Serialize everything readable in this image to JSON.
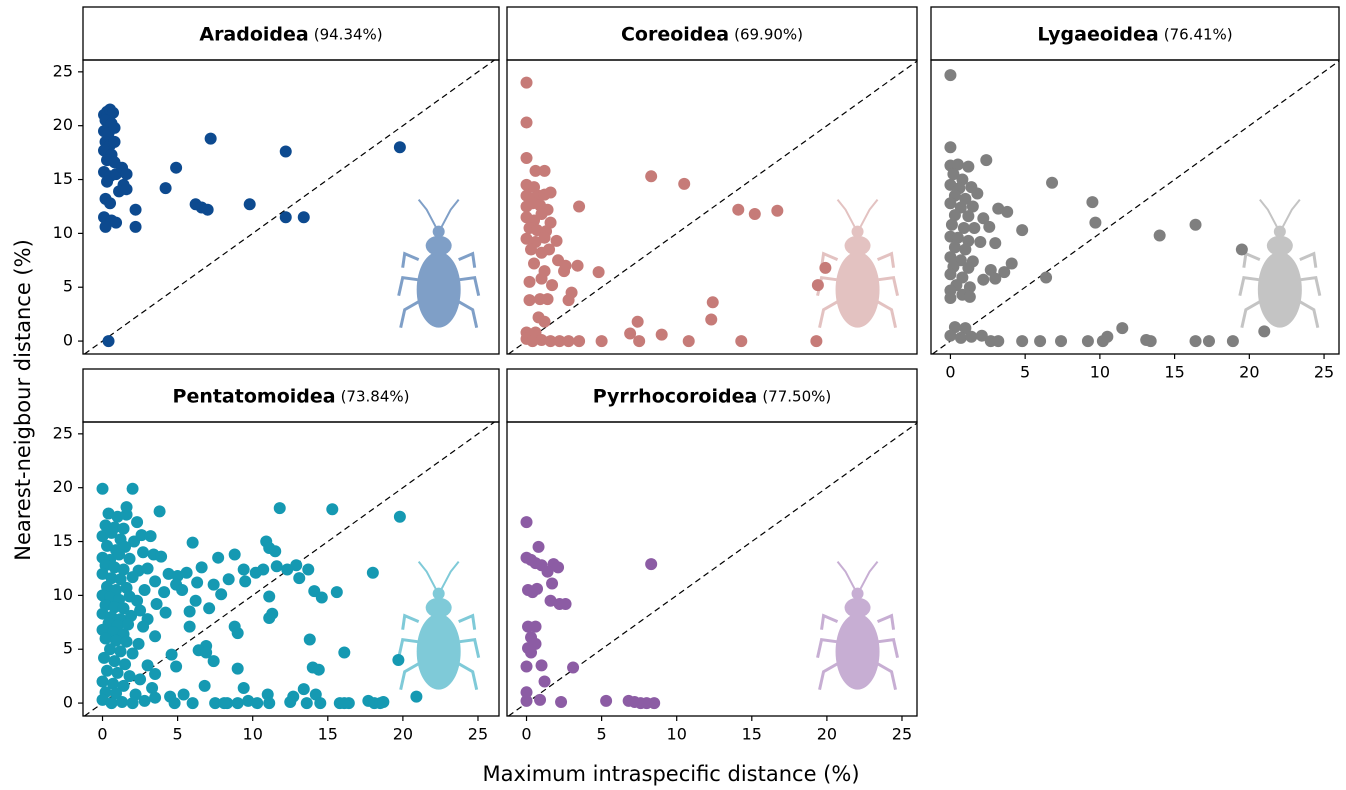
{
  "ylabel": "Nearest-neigbour distance (%)",
  "xlabel": "Maximum intraspecific distance (%)",
  "chart_data": [
    {
      "type": "scatter",
      "title": "Aradoidea",
      "subtitle": "(94.34%)",
      "color": "#0d4a8f",
      "icon_color": "#7f9fc7",
      "identity_line": true,
      "xlim": [
        -1.3,
        26.4
      ],
      "ylim": [
        -1.2,
        26.1
      ],
      "yticks": [
        0,
        5,
        10,
        15,
        20,
        25
      ],
      "x": [
        0.4,
        0.1,
        0.3,
        0.5,
        0.7,
        0.2,
        0.6,
        0.1,
        0.4,
        0.8,
        0.2,
        0.5,
        0.8,
        0.1,
        0.6,
        0.3,
        0.8,
        0.1,
        0.5,
        0.9,
        0.3,
        1.3,
        1.6,
        1.4,
        1.1,
        1.6,
        0.2,
        0.5,
        2.2,
        0.1,
        0.6,
        0.9,
        0.2,
        2.2,
        4.2,
        4.9,
        6.2,
        6.6,
        7,
        7.2,
        9.8,
        12.2,
        12.2,
        13.4,
        19.8
      ],
      "values": [
        0,
        21,
        21.3,
        21.5,
        21.2,
        20.5,
        20.2,
        19.5,
        19.3,
        19.8,
        18.5,
        18.2,
        18.5,
        17.7,
        17.3,
        16.8,
        16.6,
        15.7,
        15.3,
        15.5,
        14.8,
        16.1,
        15.5,
        14.5,
        13.9,
        14.1,
        13.2,
        12.8,
        12.2,
        11.5,
        11.2,
        11,
        10.6,
        10.6,
        14.2,
        16.1,
        12.7,
        12.4,
        12.2,
        18.8,
        12.7,
        17.6,
        11.5,
        11.5,
        18
      ]
    },
    {
      "type": "scatter",
      "title": "Coreoidea",
      "subtitle": "(69.90%)",
      "color": "#c67b78",
      "icon_color": "#e3c2c1",
      "identity_line": true,
      "xlim": [
        -1.3,
        26.0
      ],
      "ylim": [
        -1.2,
        26.1
      ],
      "x": [
        0,
        0,
        0,
        0.6,
        1.2,
        0,
        0.5,
        0,
        0.4,
        0.8,
        1.2,
        1.6,
        0,
        0.4,
        0.9,
        1.4,
        3.5,
        0,
        0.5,
        1,
        1.6,
        0.2,
        0.7,
        1.3,
        0,
        0.6,
        1.2,
        2,
        0.3,
        1,
        1.5,
        2.1,
        2.6,
        3.4,
        0.5,
        1.2,
        2.5,
        4.8,
        0.2,
        1,
        1.7,
        3,
        0.2,
        0.9,
        1.4,
        2.8,
        0.8,
        1.2,
        0,
        0.6,
        7.4,
        0,
        0.4,
        1,
        1.6,
        2.2,
        2.8,
        3.5,
        5,
        7.5,
        8.3,
        10.5,
        9,
        6.9,
        10.8,
        12.4,
        12.3,
        14.1,
        15.2,
        16.7,
        14.3,
        19.3,
        19.4,
        19.9
      ],
      "values": [
        24,
        20.3,
        17,
        15.8,
        15.8,
        14.5,
        14.3,
        13.5,
        13.2,
        13.5,
        13.6,
        13.8,
        12.5,
        12.8,
        12.6,
        12.2,
        12.5,
        11.5,
        11.2,
        11.8,
        11,
        10.5,
        10.3,
        10.2,
        9.5,
        9.2,
        9.6,
        9.3,
        8.5,
        8.2,
        8.5,
        7.5,
        7,
        7,
        7.2,
        6.5,
        6.5,
        6.4,
        5.5,
        5.8,
        5.2,
        4.5,
        3.8,
        3.9,
        3.9,
        3.8,
        2.2,
        1.8,
        0.8,
        0.8,
        1.8,
        0.2,
        0,
        0.1,
        0,
        0,
        0,
        0,
        0,
        0,
        15.3,
        14.6,
        0.6,
        0.7,
        0,
        3.6,
        2,
        12.2,
        11.8,
        12.1,
        0,
        0,
        5.2,
        6.8
      ]
    },
    {
      "type": "scatter",
      "title": "Lygaeoidea",
      "subtitle": "(76.41%)",
      "color": "#7f7f7f",
      "icon_color": "#c4c4c4",
      "identity_line": true,
      "xlim": [
        -1.3,
        26.0
      ],
      "ylim": [
        -1.2,
        26.1
      ],
      "xticks": [
        0,
        5,
        10,
        15,
        20,
        25
      ],
      "x": [
        0,
        0,
        0,
        0.5,
        1.2,
        2.4,
        0.2,
        0.8,
        0,
        0.6,
        1.4,
        6.8,
        0.3,
        1,
        1.8,
        0,
        0.7,
        1.5,
        3.2,
        3.8,
        9.5,
        0.3,
        1.2,
        2.2,
        9.7,
        16.4,
        0.1,
        0.9,
        1.6,
        2.6,
        4.8,
        14,
        0,
        0.5,
        1.2,
        2,
        3,
        0.3,
        1,
        19.5,
        0,
        0.7,
        1.5,
        4.1,
        0.2,
        1.2,
        2.7,
        3.6,
        0,
        0.8,
        2.2,
        3,
        6.4,
        0.4,
        1.3,
        0,
        0.8,
        1.3,
        0,
        0.3,
        1,
        0,
        0.7,
        1.4,
        2.1,
        2.7,
        3.2,
        4.8,
        6,
        7.4,
        9.2,
        10.2,
        10.5,
        11.5,
        13.1,
        13.4,
        16.4,
        17.3,
        18.9,
        21
      ],
      "values": [
        24.7,
        18,
        16.3,
        16.4,
        16.2,
        16.8,
        15.5,
        15,
        14.5,
        14.2,
        14.3,
        14.7,
        13.5,
        13.2,
        13.7,
        12.8,
        12.4,
        12.5,
        12.3,
        12,
        12.9,
        11.7,
        11.6,
        11.4,
        11,
        10.8,
        10.8,
        10.5,
        10.5,
        10.6,
        10.3,
        9.8,
        9.7,
        9.6,
        9.3,
        9.2,
        9.1,
        8.7,
        8.5,
        8.5,
        7.8,
        7.5,
        7.4,
        7.2,
        6.9,
        6.8,
        6.6,
        6.4,
        6.2,
        5.9,
        5.7,
        5.8,
        5.9,
        5.2,
        5,
        4.7,
        4.3,
        4.1,
        4,
        1.3,
        1.2,
        0.5,
        0.3,
        0.4,
        0.5,
        0,
        0,
        0,
        0,
        0,
        0,
        0,
        0.4,
        1.2,
        0.1,
        0,
        0,
        0,
        0,
        0.9
      ]
    },
    {
      "type": "scatter",
      "title": "Pentatomoidea",
      "subtitle": "(73.84%)",
      "color": "#1599b2",
      "icon_color": "#7fcad8",
      "identity_line": true,
      "xlim": [
        -1.3,
        26.4
      ],
      "ylim": [
        -1.2,
        26.1
      ],
      "xticks": [
        0,
        5,
        10,
        15,
        20,
        25
      ],
      "yticks": [
        0,
        5,
        10,
        15,
        20,
        25
      ],
      "x": [
        0,
        0.4,
        1,
        1.6,
        2,
        1.6,
        3.8,
        0.2,
        0.8,
        1.4,
        2.3,
        11.8,
        15.3,
        19.8,
        0,
        0.6,
        1.2,
        2.1,
        2.6,
        3.2,
        6,
        10.9,
        11.1,
        0.3,
        0.9,
        1.5,
        2.7,
        3.4,
        0,
        0.5,
        1.1,
        1.8,
        3.9,
        7.7,
        8.8,
        11.5,
        12.9,
        0.2,
        0.8,
        1.4,
        2.4,
        3,
        4.4,
        5,
        5.6,
        6.6,
        9.4,
        10.2,
        10.7,
        11.6,
        12.3,
        13.7,
        0,
        0.6,
        1.2,
        2,
        3.5,
        4.9,
        6.3,
        7.4,
        8.4,
        9.5,
        13.1,
        18,
        0.3,
        0.9,
        1.6,
        2.8,
        4.1,
        5.3,
        7.9,
        14.1,
        15.6,
        0,
        0.5,
        1.1,
        1.8,
        2.3,
        3.6,
        6.2,
        11.1,
        14.6,
        0.2,
        0.8,
        1.4,
        2.5,
        4.2,
        5.8,
        7.1,
        11.3,
        0,
        0.6,
        1.2,
        1.9,
        3,
        11.1,
        0.4,
        1,
        1.7,
        2.7,
        5.8,
        8.8,
        0,
        0.7,
        1.4,
        3.5,
        9,
        0.2,
        0.9,
        1.6,
        2.4,
        6.9,
        13.8,
        0.5,
        1.2,
        2,
        4.6,
        6.4,
        6.9,
        16.1,
        19.7,
        0.1,
        0.8,
        1.5,
        3,
        4.9,
        7.4,
        9,
        14,
        14.4,
        0.3,
        1,
        1.8,
        2.5,
        3.5,
        0,
        0.7,
        1.4,
        3.3,
        6.8,
        9.4,
        13.4,
        0.2,
        0.9,
        2.2,
        3.5,
        4.5,
        5.4,
        11,
        12.7,
        14.2,
        20.9,
        0,
        0.6,
        1.3,
        2,
        2.8,
        4.8,
        6,
        7.5,
        8.3,
        9,
        9.7,
        10.3,
        11.1,
        12.5,
        13.6,
        14.5,
        15.8,
        16.4,
        17.7,
        18.1,
        18.5,
        18.7,
        16.1,
        8.1
      ],
      "values": [
        19.9,
        17.6,
        17.3,
        17.5,
        19.9,
        18.2,
        17.8,
        16.5,
        16.3,
        16.2,
        16.8,
        18.1,
        18,
        17.3,
        15.5,
        15.8,
        15.2,
        15,
        15.6,
        15.5,
        14.9,
        15,
        14.4,
        14.6,
        14.2,
        14.5,
        14,
        13.8,
        13.5,
        13.3,
        13.8,
        13.4,
        13.6,
        13.5,
        13.8,
        14.1,
        12.8,
        12.8,
        12.6,
        12.4,
        12.3,
        12.5,
        12,
        11.8,
        12.1,
        12.6,
        12.4,
        12.1,
        12.4,
        12.7,
        12.4,
        12.4,
        12,
        11.6,
        11.5,
        11.7,
        11.3,
        11,
        11.2,
        11,
        11.5,
        11.3,
        11.6,
        12.1,
        10.8,
        10.5,
        10.7,
        10.5,
        10.3,
        10.5,
        10.1,
        10.4,
        10.3,
        10,
        9.8,
        9.6,
        9.9,
        9.5,
        9.2,
        9.5,
        9.9,
        9.8,
        9.1,
        8.9,
        8.8,
        8.6,
        8.4,
        8.5,
        8.8,
        8.3,
        8.3,
        8,
        7.8,
        8.1,
        7.8,
        7.9,
        7.4,
        7.2,
        7.3,
        7.1,
        7.1,
        7.1,
        6.8,
        6.6,
        6.4,
        6.2,
        6.5,
        6,
        5.8,
        5.7,
        5.5,
        5.3,
        5.9,
        5,
        4.8,
        4.6,
        4.5,
        4.9,
        4.7,
        4.7,
        4,
        4.2,
        3.9,
        3.6,
        3.5,
        3.4,
        3.9,
        3.2,
        3.3,
        3.1,
        3,
        2.8,
        2.5,
        2.2,
        2.7,
        2,
        1.8,
        1.6,
        1.4,
        1.6,
        1.4,
        1.3,
        1,
        0.9,
        0.8,
        0.5,
        0.6,
        0.8,
        0.8,
        0.6,
        0.8,
        0.6,
        0.3,
        0,
        0.1,
        0,
        0.2,
        0,
        0,
        0,
        0,
        0,
        0.2,
        0,
        0,
        0.1,
        0,
        0,
        0,
        0,
        0.2,
        0,
        0,
        0.1,
        0,
        0
      ]
    },
    {
      "type": "scatter",
      "title": "Pyrrhocoroidea",
      "subtitle": "(77.50%)",
      "color": "#8c5ca4",
      "icon_color": "#c7aed3",
      "identity_line": true,
      "xlim": [
        -1.3,
        26.0
      ],
      "ylim": [
        -1.2,
        26.1
      ],
      "xticks": [
        0,
        5,
        10,
        15,
        20,
        25
      ],
      "x": [
        0,
        0,
        0.3,
        0.8,
        0.6,
        1,
        1.8,
        2.1,
        1.4,
        1.7,
        0.1,
        0.4,
        0.7,
        2.2,
        2.6,
        1.6,
        0.1,
        0.6,
        0.3,
        0.6,
        0.1,
        0.3,
        0,
        1,
        3.1,
        1.2,
        0,
        0,
        0.9,
        2.3,
        5.3,
        6.8,
        7.2,
        7.6,
        8,
        8.5,
        8.3
      ],
      "values": [
        16.8,
        13.5,
        13.3,
        14.5,
        13,
        12.8,
        12.9,
        12.6,
        12.2,
        11.1,
        10.5,
        10.3,
        10.6,
        9.2,
        9.2,
        9.5,
        7.1,
        7.1,
        6.1,
        5.5,
        5.1,
        4.7,
        3.4,
        3.5,
        3.3,
        2,
        1,
        0.2,
        0.3,
        0.1,
        0.2,
        0.2,
        0.1,
        0,
        0,
        0,
        12.9
      ]
    }
  ]
}
